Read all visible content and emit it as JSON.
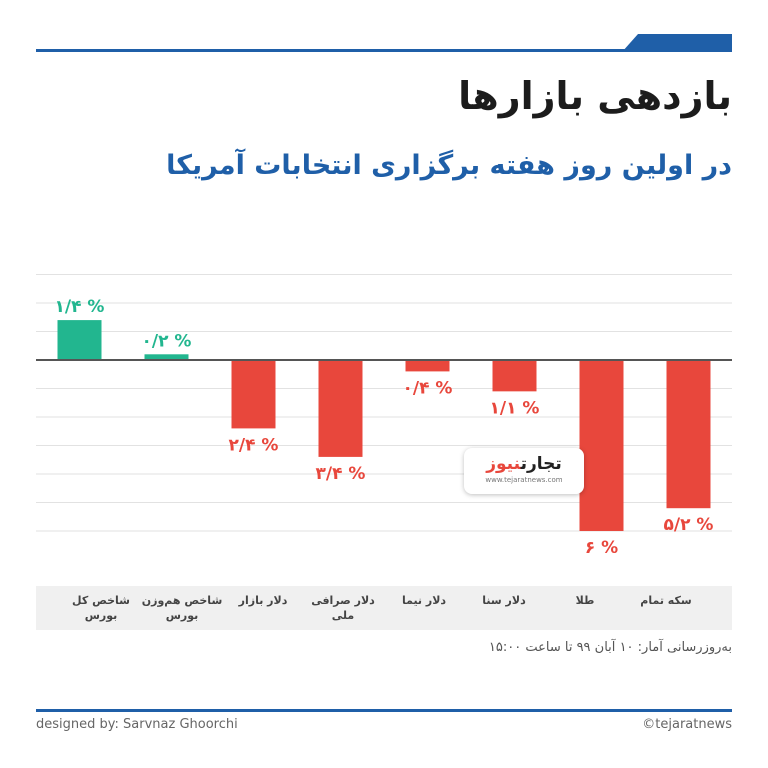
{
  "header": {
    "title": "بازدهی بازارها",
    "subtitle": "در اولین روز هفته برگزاری انتخابات آمریکا"
  },
  "colors": {
    "positive": "#22b68f",
    "negative": "#e8473c",
    "accent": "#1f5fa8"
  },
  "chart_data": {
    "type": "bar",
    "categories": [
      "شاخص کل بورس",
      "شاخص هم‌وزن بورس",
      "دلار بازار",
      "دلار صرافی ملی",
      "دلار نیما",
      "دلار سنا",
      "طلا",
      "سکه تمام"
    ],
    "values": [
      1.4,
      0.2,
      -2.4,
      -3.4,
      -0.4,
      -1.1,
      -6,
      -5.2
    ],
    "data_labels": [
      "۱/۴ %",
      "۰/۲ %",
      "۲/۴ %",
      "۳/۴ %",
      "۰/۴ %",
      "۱/۱ %",
      "۶ %",
      "۵/۲ %"
    ],
    "ylim": [
      -6.3,
      2.7
    ],
    "grid": true,
    "legend": "none"
  },
  "categories_display": [
    {
      "line1": "شاخص کل",
      "line2": "بورس"
    },
    {
      "line1": "شاخص هم‌وزن",
      "line2": "بورس"
    },
    {
      "line1": "دلار بازار",
      "line2": ""
    },
    {
      "line1": "دلار صرافی ملی",
      "line2": ""
    },
    {
      "line1": "دلار نیما",
      "line2": ""
    },
    {
      "line1": "دلار سنا",
      "line2": ""
    },
    {
      "line1": "طلا",
      "line2": ""
    },
    {
      "line1": "سکه تمام",
      "line2": ""
    }
  ],
  "logo": {
    "word_main": "تجارت",
    "word_accent": "نیوز",
    "url": "www.tejaratnews.com"
  },
  "footer": {
    "source_note": "به‌روزرسانی آمار: ۱۰ آبان ۹۹ تا ساعت ۱۵:۰۰",
    "designer": "designed by: Sarvnaz Ghoorchi",
    "handle": "©tejaratnews"
  }
}
